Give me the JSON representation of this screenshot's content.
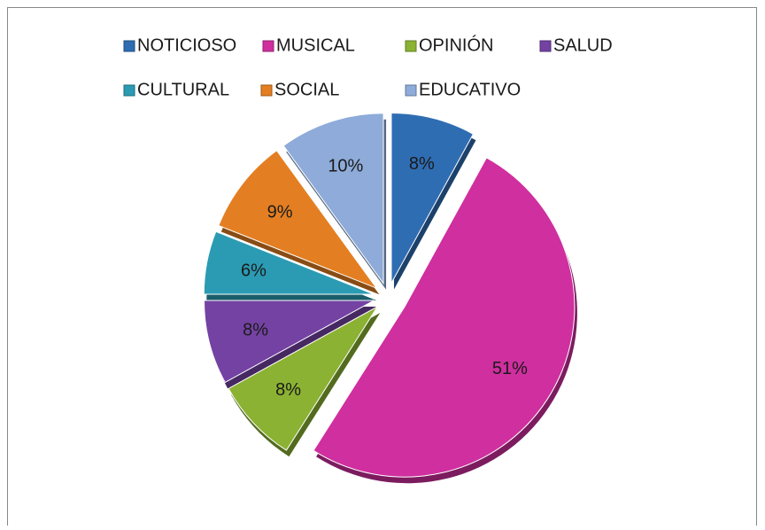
{
  "chart_data": {
    "type": "pie",
    "categories": [
      "NOTICIOSO",
      "MUSICAL",
      "OPINIÓN",
      "SALUD",
      "CULTURAL",
      "SOCIAL",
      "EDUCATIVO"
    ],
    "values": [
      8,
      51,
      8,
      8,
      6,
      9,
      10
    ],
    "value_labels": [
      "8%",
      "51%",
      "8%",
      "8%",
      "6%",
      "9%",
      "10%"
    ],
    "colors": [
      "#2f6db3",
      "#cf2f9f",
      "#8bb232",
      "#7442a3",
      "#2b9bb3",
      "#e37f22",
      "#8eabd9"
    ],
    "legend": "top"
  }
}
